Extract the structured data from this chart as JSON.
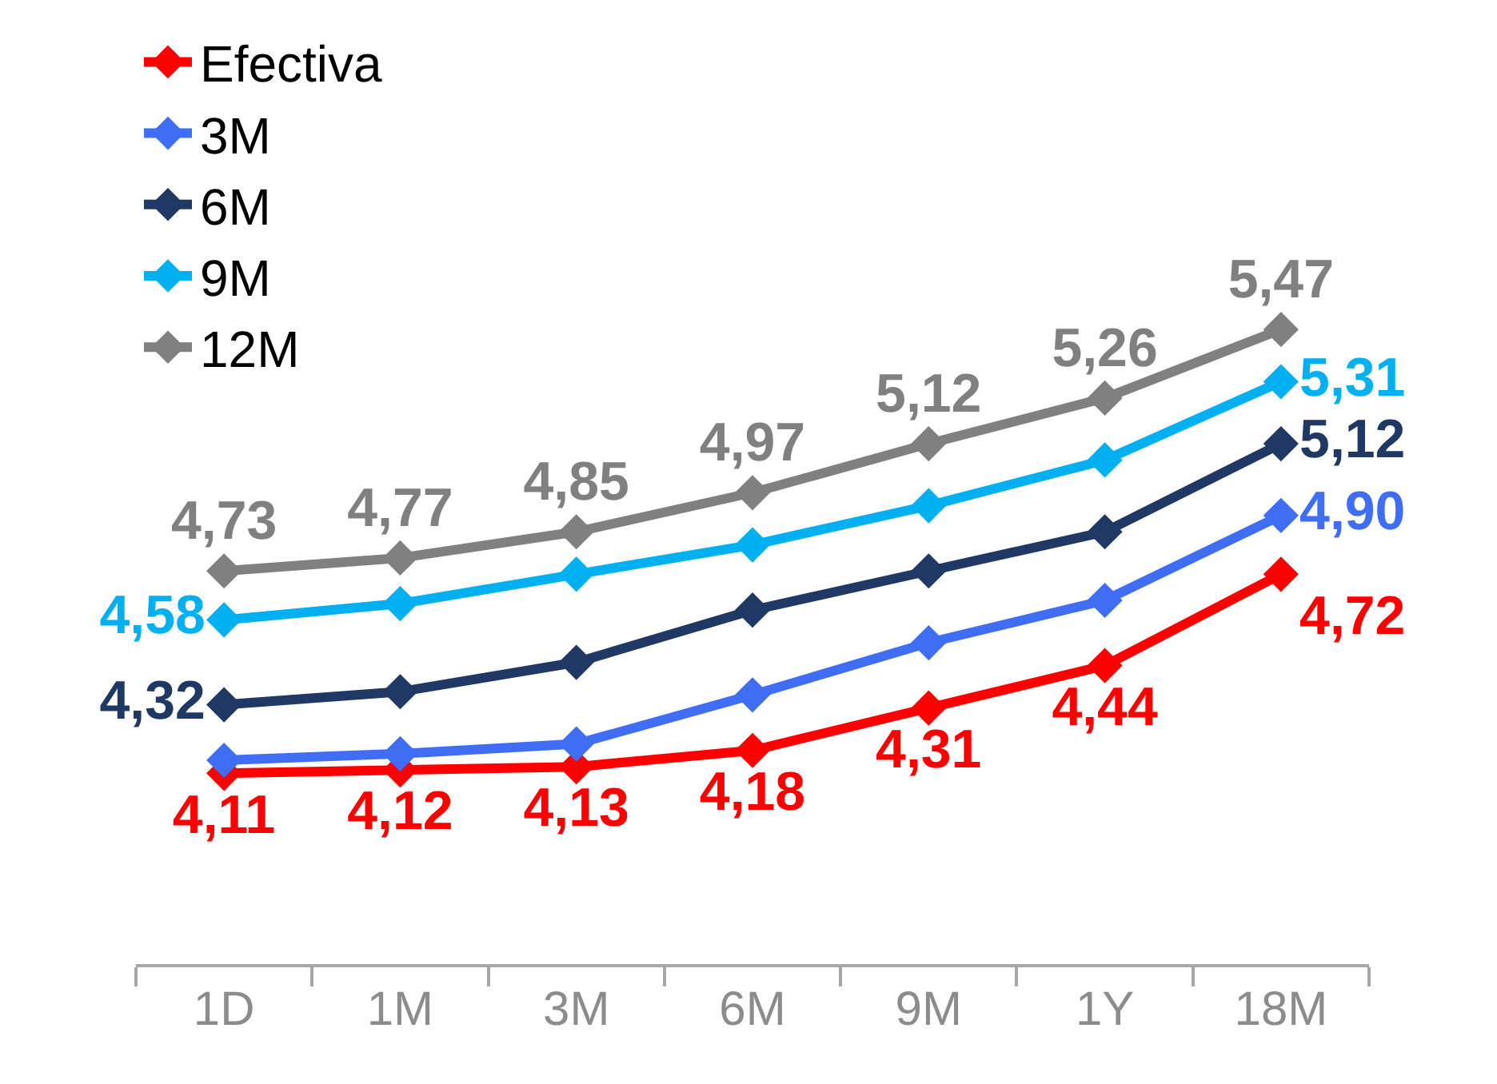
{
  "chart_data": {
    "type": "line",
    "categories": [
      "1D",
      "1M",
      "3M",
      "6M",
      "9M",
      "1Y",
      "18M"
    ],
    "marker": "diamond",
    "line_style": "solid",
    "legend": "top",
    "grid": false,
    "series": [
      {
        "name": "Efectiva",
        "color": "#ff0000",
        "values": [
          4.11,
          4.12,
          4.13,
          4.18,
          4.31,
          4.44,
          4.72
        ],
        "value_labels": [
          "4,11",
          "4,12",
          "4,13",
          "4,18",
          "4,31",
          "4,44",
          "4,72"
        ]
      },
      {
        "name": "3M",
        "color": "#3f6ef5",
        "values": [
          4.15,
          4.17,
          4.2,
          4.35,
          4.51,
          4.64,
          4.9
        ],
        "value_labels": [
          null,
          null,
          null,
          null,
          null,
          null,
          "4,90"
        ]
      },
      {
        "name": "6M",
        "color": "#1f3864",
        "values": [
          4.32,
          4.36,
          4.45,
          4.61,
          4.73,
          4.85,
          5.12
        ],
        "value_labels": [
          "4,32",
          null,
          null,
          null,
          null,
          null,
          "5,12"
        ]
      },
      {
        "name": "9M",
        "color": "#00b0f0",
        "values": [
          4.58,
          4.63,
          4.72,
          4.81,
          4.93,
          5.07,
          5.31
        ],
        "value_labels": [
          "4,58",
          null,
          null,
          null,
          null,
          null,
          "5,31"
        ]
      },
      {
        "name": "12M",
        "color": "#808080",
        "values": [
          4.73,
          4.77,
          4.85,
          4.97,
          5.12,
          5.26,
          5.47
        ],
        "value_labels": [
          "4,73",
          "4,77",
          "4,85",
          "4,97",
          "5,12",
          "5,26",
          "5,47"
        ]
      }
    ]
  }
}
